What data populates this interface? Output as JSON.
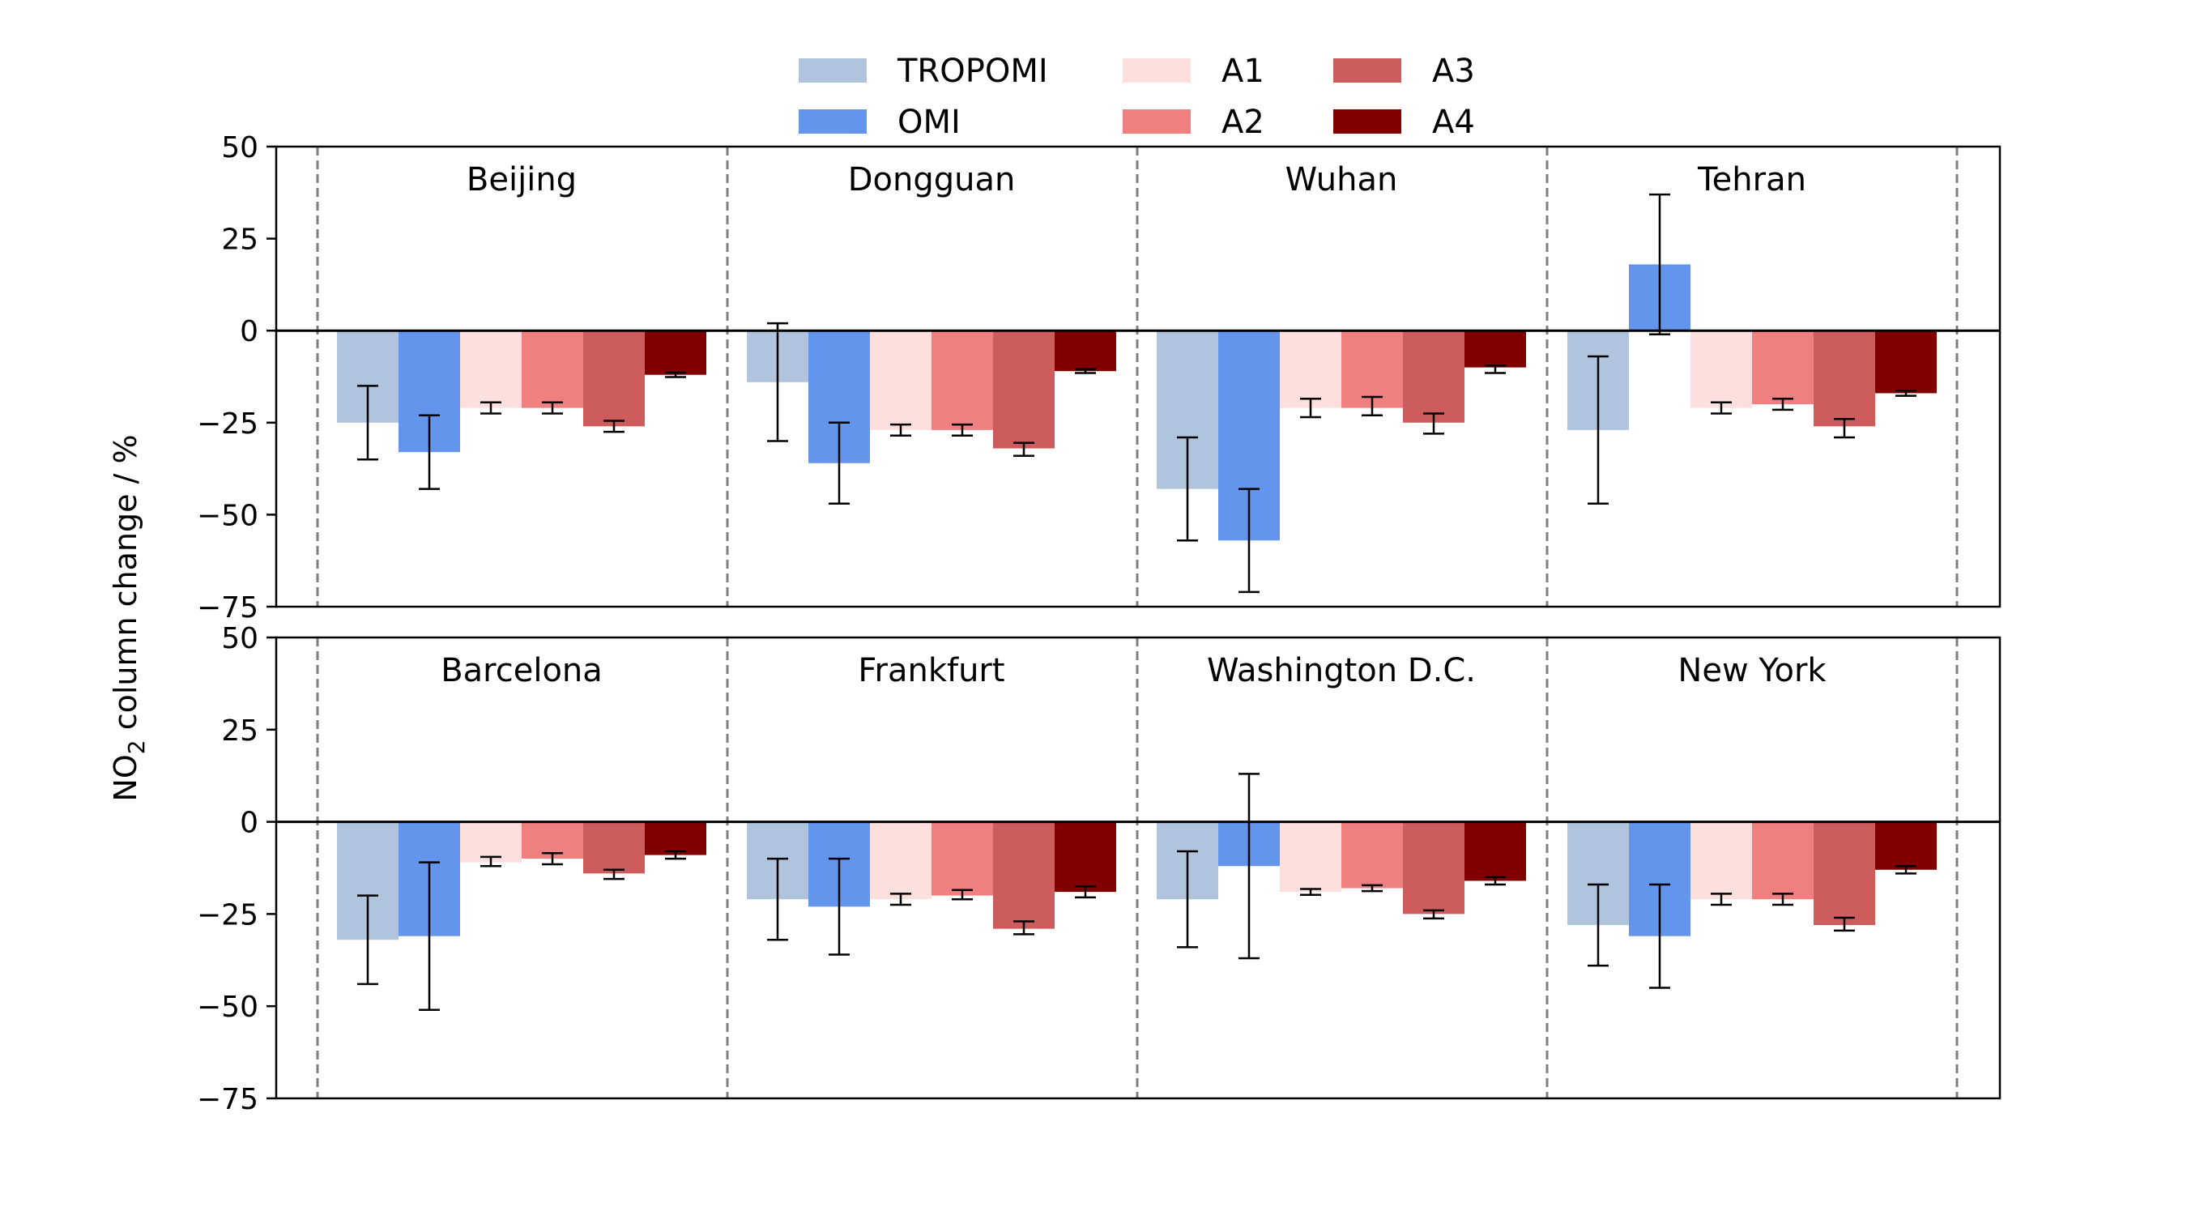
{
  "chart_data": {
    "type": "bar",
    "ylabel_parts": [
      "NO",
      "2",
      " column change / %"
    ],
    "ylim": [
      -75,
      50
    ],
    "yticks": [
      50,
      25,
      0,
      -25,
      -50,
      -75
    ],
    "ytick_labels": [
      "50",
      "25",
      "0",
      "−25",
      "−50",
      "−75"
    ],
    "grid": false,
    "legend_placement": "top-center",
    "series": [
      {
        "name": "TROPOMI",
        "color": "#b0c4de"
      },
      {
        "name": "OMI",
        "color": "#6495ed"
      },
      {
        "name": "A1",
        "color": "#fde0dd"
      },
      {
        "name": "A2",
        "color": "#f08080"
      },
      {
        "name": "A3",
        "color": "#cd5c5c"
      },
      {
        "name": "A4",
        "color": "#800000"
      }
    ],
    "rows": [
      [
        {
          "city": "Beijing",
          "values": [
            -25,
            -33,
            -21,
            -21,
            -26,
            -12
          ],
          "errors": [
            [
              -35,
              -15
            ],
            [
              -43,
              -23
            ],
            [
              -22.5,
              -19.5
            ],
            [
              -22.5,
              -19.5
            ],
            [
              -27.5,
              -24.5
            ],
            [
              -12.6,
              -11.4
            ]
          ]
        },
        {
          "city": "Dongguan",
          "values": [
            -14,
            -36,
            -27,
            -27,
            -32,
            -11
          ],
          "errors": [
            [
              -30,
              2
            ],
            [
              -47,
              -25
            ],
            [
              -28.5,
              -25.5
            ],
            [
              -28.5,
              -25.5
            ],
            [
              -34,
              -30.5
            ],
            [
              -11.5,
              -10.5
            ]
          ]
        },
        {
          "city": "Wuhan",
          "values": [
            -43,
            -57,
            -21,
            -21,
            -25,
            -10
          ],
          "errors": [
            [
              -57,
              -29
            ],
            [
              -71,
              -43
            ],
            [
              -23.5,
              -18.5
            ],
            [
              -23,
              -18
            ],
            [
              -28,
              -22.5
            ],
            [
              -11.5,
              -9.5
            ]
          ]
        },
        {
          "city": "Tehran",
          "values": [
            -27,
            18,
            -21,
            -20,
            -26,
            -17
          ],
          "errors": [
            [
              -47,
              -7
            ],
            [
              -1,
              37
            ],
            [
              -22.5,
              -19.5
            ],
            [
              -21.5,
              -18.5
            ],
            [
              -29,
              -24
            ],
            [
              -17.7,
              -16.3
            ]
          ]
        }
      ],
      [
        {
          "city": "Barcelona",
          "values": [
            -32,
            -31,
            -11,
            -10,
            -14,
            -9
          ],
          "errors": [
            [
              -44,
              -20
            ],
            [
              -51,
              -11
            ],
            [
              -12,
              -9.5
            ],
            [
              -11.5,
              -8.5
            ],
            [
              -15.5,
              -13
            ],
            [
              -10,
              -8
            ]
          ]
        },
        {
          "city": "Frankfurt",
          "values": [
            -21,
            -23,
            -21,
            -20,
            -29,
            -19
          ],
          "errors": [
            [
              -32,
              -10
            ],
            [
              -36,
              -10
            ],
            [
              -22.5,
              -19.5
            ],
            [
              -21,
              -18.5
            ],
            [
              -30.5,
              -27
            ],
            [
              -20.5,
              -17.5
            ]
          ]
        },
        {
          "city": "Washington D.C.",
          "values": [
            -21,
            -12,
            -19,
            -18,
            -25,
            -16
          ],
          "errors": [
            [
              -34,
              -8
            ],
            [
              -37,
              13
            ],
            [
              -19.8,
              -18.2
            ],
            [
              -18.8,
              -17.2
            ],
            [
              -26.2,
              -24
            ],
            [
              -17,
              -15
            ]
          ]
        },
        {
          "city": "New York",
          "values": [
            -28,
            -31,
            -21,
            -21,
            -28,
            -13
          ],
          "errors": [
            [
              -39,
              -17
            ],
            [
              -45,
              -17
            ],
            [
              -22.5,
              -19.5
            ],
            [
              -22.5,
              -19.5
            ],
            [
              -29.5,
              -26
            ],
            [
              -14,
              -12
            ]
          ]
        }
      ]
    ]
  }
}
